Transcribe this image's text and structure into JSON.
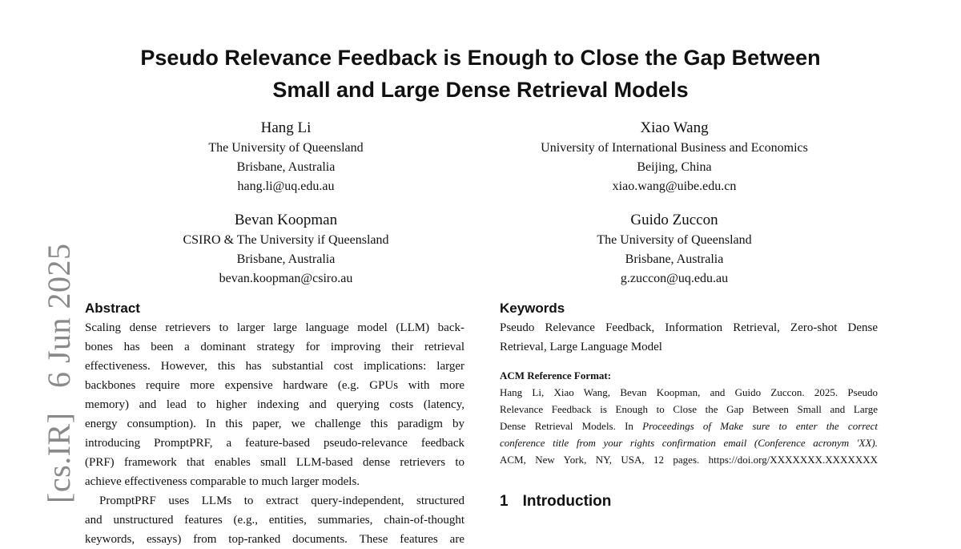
{
  "title_lines": [
    "Pseudo Relevance Feedback is Enough to Close the Gap Between",
    "Small and Large Dense Retrieval Models"
  ],
  "authors": [
    {
      "name": "Hang Li",
      "affiliation": "The University of Queensland",
      "location": "Brisbane, Australia",
      "email": "hang.li@uq.edu.au"
    },
    {
      "name": "Xiao Wang",
      "affiliation": "University of International Business and Economics",
      "location": "Beijing, China",
      "email": "xiao.wang@uibe.edu.cn"
    },
    {
      "name": "Bevan Koopman",
      "affiliation": "CSIRO & The University if Queensland",
      "location": "Brisbane, Australia",
      "email": "bevan.koopman@csiro.au"
    },
    {
      "name": "Guido Zuccon",
      "affiliation": "The University of Queensland",
      "location": "Brisbane, Australia",
      "email": "g.zuccon@uq.edu.au"
    }
  ],
  "arxiv_stamp": {
    "category": "[cs.IR]",
    "date": "6 Jun 2025"
  },
  "abstract": {
    "heading": "Abstract",
    "lines": [
      "Scaling dense retrievers to larger large language model (LLM) back-",
      "bones has been a dominant strategy for improving their retrieval",
      "effectiveness. However, this has substantial cost implications: larger",
      "backbones require more expensive hardware (e.g. GPUs with more",
      "memory) and lead to higher indexing and querying costs (latency,",
      "energy consumption). In this paper, we challenge this paradigm by",
      "introducing PromptPRF, a feature-based pseudo-relevance feedback",
      "(PRF) framework that enables small LLM-based dense retrievers to",
      "achieve effectiveness comparable to much larger models."
    ],
    "para2_lines": [
      "PromptPRF uses LLMs to extract query-independent, structured",
      "and unstructured features (e.g., entities, summaries, chain-of-thought",
      "keywords, essays) from top-ranked documents. These features are"
    ]
  },
  "keywords": {
    "heading": "Keywords",
    "lines": [
      "Pseudo Relevance Feedback, Information Retrieval, Zero-shot Dense",
      "Retrieval, Large Language Model"
    ]
  },
  "acm_reference": {
    "heading": "ACM Reference Format:",
    "lines": [
      {
        "text": "Hang Li, Xiao Wang, Bevan Koopman, and Guido Zuccon. 2025. Pseudo"
      },
      {
        "text": "Relevance Feedback is Enough to Close the Gap Between Small and Large"
      },
      {
        "text": "Dense Retrieval Models. In ",
        "italic": "Proceedings of Make sure to enter the correct"
      },
      {
        "italic": "conference title from your rights confirmation email (Conference acronym 'XX)."
      },
      {
        "text": "ACM, New York, NY, USA, 12 pages. https://doi.org/XXXXXXX.XXXXXXX"
      }
    ]
  },
  "introduction": {
    "number": "1",
    "heading": "Introduction"
  }
}
